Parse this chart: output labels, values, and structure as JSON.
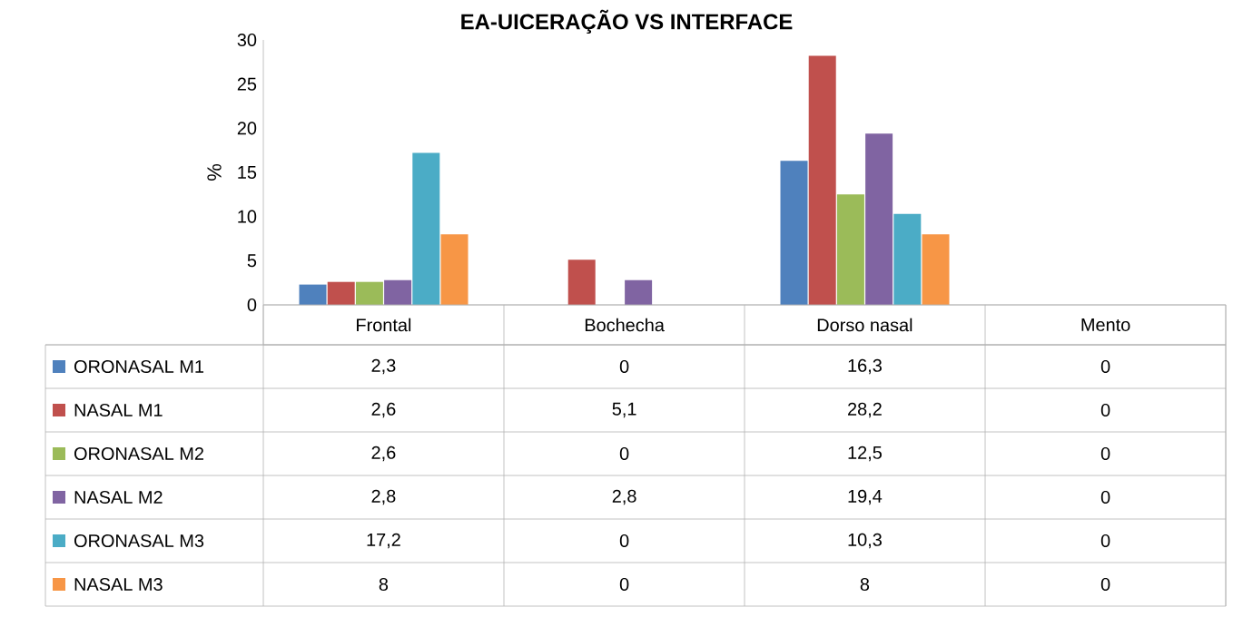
{
  "chart_data": {
    "type": "bar",
    "title": "EA-UICERAÇÃO VS INTERFACE",
    "ylabel": "%",
    "categories": [
      "Frontal",
      "Bochecha",
      "Dorso nasal",
      "Mento"
    ],
    "series": [
      {
        "name": "ORONASAL M1",
        "color": "#4f81bd",
        "values": [
          2.3,
          0,
          16.3,
          0
        ],
        "value_labels": [
          "2,3",
          "0",
          "16,3",
          "0"
        ]
      },
      {
        "name": "NASAL M1",
        "color": "#c0504d",
        "values": [
          2.6,
          5.1,
          28.2,
          0
        ],
        "value_labels": [
          "2,6",
          "5,1",
          "28,2",
          "0"
        ]
      },
      {
        "name": "ORONASAL M2",
        "color": "#9bbb59",
        "values": [
          2.6,
          0,
          12.5,
          0
        ],
        "value_labels": [
          "2,6",
          "0",
          "12,5",
          "0"
        ]
      },
      {
        "name": "NASAL M2",
        "color": "#8064a2",
        "values": [
          2.8,
          2.8,
          19.4,
          0
        ],
        "value_labels": [
          "2,8",
          "2,8",
          "19,4",
          "0"
        ]
      },
      {
        "name": "ORONASAL M3",
        "color": "#4bacc6",
        "values": [
          17.2,
          0,
          10.3,
          0
        ],
        "value_labels": [
          "17,2",
          "0",
          "10,3",
          "0"
        ]
      },
      {
        "name": "NASAL M3",
        "color": "#f79646",
        "values": [
          8,
          0,
          8,
          0
        ],
        "value_labels": [
          "8",
          "0",
          "8",
          "0"
        ]
      }
    ],
    "ylim": [
      0,
      30
    ],
    "yticks": [
      0,
      5,
      10,
      15,
      20,
      25,
      30
    ],
    "legend": "bottom"
  }
}
